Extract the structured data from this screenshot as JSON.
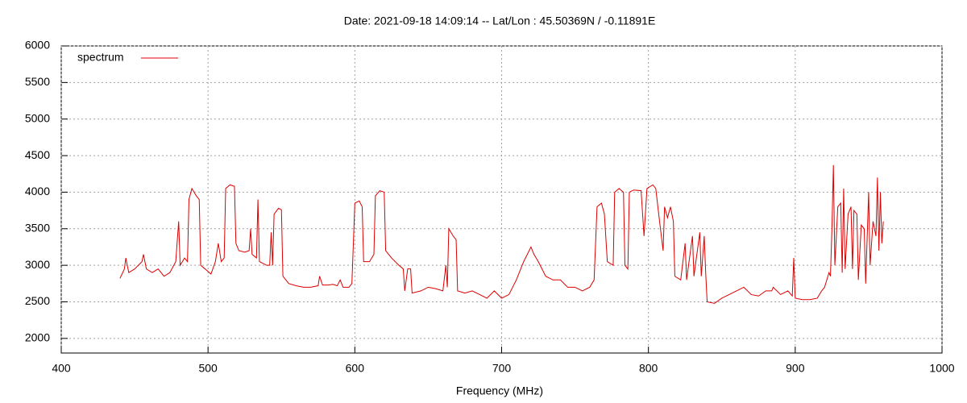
{
  "chart_data": {
    "type": "line",
    "title": "Date: 2021-09-18 14:09:14  --  Lat/Lon : 45.50369N / -0.11891E",
    "xlabel": "Frequency (MHz)",
    "xlim": [
      400,
      1000
    ],
    "xticks": [
      400,
      500,
      600,
      700,
      800,
      900,
      1000
    ],
    "ylim": [
      1800,
      6000
    ],
    "yticks": [
      2000,
      2500,
      3000,
      3500,
      4000,
      4500,
      5000,
      5500,
      6000
    ],
    "grid": true,
    "legend": "top-left",
    "x": [
      440,
      443,
      444,
      446,
      450,
      455,
      456,
      458,
      462,
      466,
      470,
      474,
      478,
      480,
      481,
      484,
      486,
      487,
      489,
      492,
      494,
      495,
      498,
      502,
      505,
      507,
      509,
      511,
      512,
      515,
      518,
      519,
      521,
      525,
      528,
      529,
      530,
      533,
      534,
      535,
      540,
      542,
      543,
      544,
      545,
      548,
      550,
      551,
      555,
      560,
      565,
      570,
      575,
      576,
      578,
      582,
      585,
      588,
      590,
      592,
      596,
      598,
      600,
      603,
      605,
      606,
      610,
      613,
      614,
      617,
      620,
      621,
      625,
      630,
      633,
      634,
      636,
      638,
      639,
      645,
      650,
      655,
      660,
      662,
      663,
      664,
      667,
      669,
      670,
      675,
      680,
      685,
      690,
      695,
      700,
      705,
      710,
      715,
      720,
      722,
      725,
      730,
      735,
      740,
      745,
      750,
      755,
      760,
      763,
      765,
      768,
      770,
      772,
      776,
      777,
      780,
      783,
      784,
      786,
      787,
      790,
      795,
      797,
      799,
      803,
      805,
      807,
      810,
      811,
      813,
      815,
      817,
      818,
      822,
      825,
      826,
      830,
      831,
      835,
      836,
      838,
      839,
      840,
      845,
      850,
      855,
      860,
      865,
      870,
      875,
      880,
      884,
      885,
      890,
      895,
      898,
      899,
      900,
      905,
      910,
      915,
      918,
      920,
      923,
      924,
      925,
      926,
      927,
      929,
      931,
      932,
      933,
      934,
      936,
      938,
      939,
      940,
      942,
      943,
      945,
      947,
      948,
      950,
      951,
      953,
      955,
      956,
      957,
      958,
      959,
      960
    ],
    "series": [
      {
        "name": "spectrum",
        "color": "#dd0000",
        "values": [
          2820,
          2950,
          3100,
          2900,
          2950,
          3050,
          3150,
          2950,
          2900,
          2950,
          2850,
          2900,
          3050,
          3600,
          3000,
          3100,
          3050,
          3900,
          4050,
          3950,
          3900,
          3000,
          2950,
          2880,
          3050,
          3300,
          3050,
          3100,
          4050,
          4100,
          4080,
          3300,
          3200,
          3180,
          3200,
          3500,
          3150,
          3100,
          3900,
          3050,
          3000,
          3000,
          3450,
          3000,
          3700,
          3780,
          3760,
          2850,
          2750,
          2720,
          2700,
          2700,
          2720,
          2850,
          2730,
          2730,
          2740,
          2720,
          2800,
          2700,
          2700,
          2750,
          3850,
          3880,
          3800,
          3050,
          3050,
          3150,
          3950,
          4020,
          4000,
          3200,
          3100,
          3000,
          2950,
          2650,
          2950,
          2950,
          2620,
          2650,
          2700,
          2680,
          2650,
          3000,
          2700,
          3500,
          3400,
          3350,
          2650,
          2620,
          2650,
          2600,
          2550,
          2650,
          2550,
          2600,
          2800,
          3050,
          3250,
          3150,
          3050,
          2850,
          2800,
          2800,
          2700,
          2700,
          2650,
          2700,
          2800,
          3800,
          3850,
          3700,
          3050,
          3000,
          4000,
          4050,
          4000,
          3000,
          2950,
          4000,
          4030,
          4020,
          3400,
          4050,
          4100,
          4050,
          3700,
          3200,
          3800,
          3650,
          3800,
          3600,
          2850,
          2800,
          3300,
          2800,
          3400,
          2850,
          3450,
          2850,
          3400,
          2900,
          2500,
          2480,
          2550,
          2600,
          2650,
          2700,
          2600,
          2580,
          2650,
          2650,
          2700,
          2600,
          2650,
          2580,
          3100,
          2550,
          2530,
          2530,
          2550,
          2650,
          2700,
          2900,
          2850,
          3500,
          4370,
          3000,
          3800,
          3850,
          2900,
          4050,
          2950,
          3700,
          3800,
          2950,
          3750,
          3700,
          2800,
          3550,
          3500,
          2750,
          4000,
          3000,
          3600,
          3400,
          4200,
          3200,
          4000,
          3300,
          3600
        ]
      }
    ]
  }
}
